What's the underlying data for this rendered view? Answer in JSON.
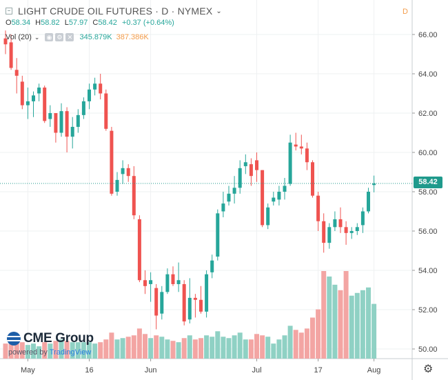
{
  "header": {
    "title": "LIGHT CRUDE OIL FUTURES · D · NYMEX",
    "flag": "D"
  },
  "ohlc": {
    "open_label": "O",
    "open": "58.34",
    "high_label": "H",
    "high": "58.82",
    "low_label": "L",
    "low": "57.97",
    "close_label": "C",
    "close": "58.42",
    "change": "+0.37 (+0.64%)"
  },
  "volume": {
    "label": "Vol (20)",
    "value": "345.879K",
    "ma": "387.386K"
  },
  "logo": {
    "name": "CME Group",
    "powered": "powered by ",
    "tv": "TradingView"
  },
  "last_price": "58.42",
  "colors": {
    "up": "#26a69a",
    "down": "#ef5350",
    "up_vol": "#8fd1c4",
    "down_vol": "#f3a5a3",
    "grid": "#eef0f2"
  },
  "chart_data": {
    "type": "candlestick",
    "y_ticks": [
      "50.00",
      "52.00",
      "54.00",
      "56.00",
      "58.00",
      "60.00",
      "62.00",
      "64.00",
      "66.00"
    ],
    "ylim": [
      49.6,
      67.0
    ],
    "x_ticks": [
      {
        "label": "May",
        "index": 4
      },
      {
        "label": "16",
        "index": 15
      },
      {
        "label": "Jun",
        "index": 26
      },
      {
        "label": "Jul",
        "index": 45
      },
      {
        "label": "17",
        "index": 56
      },
      {
        "label": "Aug",
        "index": 66
      }
    ],
    "candles": [
      {
        "date": "Apr 26",
        "o": 65.8,
        "h": 66.2,
        "l": 65.0,
        "c": 65.5,
        "v": 55
      },
      {
        "date": "Apr 29",
        "o": 65.6,
        "h": 66.0,
        "l": 64.2,
        "c": 64.3,
        "v": 60
      },
      {
        "date": "Apr 30",
        "o": 64.2,
        "h": 64.8,
        "l": 63.0,
        "c": 63.9,
        "v": 60
      },
      {
        "date": "May 1",
        "o": 63.6,
        "h": 63.9,
        "l": 62.2,
        "c": 62.4,
        "v": 60
      },
      {
        "date": "May 2",
        "o": 62.4,
        "h": 63.3,
        "l": 61.7,
        "c": 62.6,
        "v": 50
      },
      {
        "date": "May 3",
        "o": 62.6,
        "h": 63.1,
        "l": 61.8,
        "c": 62.9,
        "v": 55
      },
      {
        "date": "May 6",
        "o": 63.0,
        "h": 63.5,
        "l": 62.6,
        "c": 63.3,
        "v": 45
      },
      {
        "date": "May 7",
        "o": 63.3,
        "h": 63.4,
        "l": 61.5,
        "c": 61.6,
        "v": 60
      },
      {
        "date": "May 8",
        "o": 61.7,
        "h": 62.4,
        "l": 61.3,
        "c": 62.0,
        "v": 55
      },
      {
        "date": "May 9",
        "o": 62.0,
        "h": 62.0,
        "l": 60.5,
        "c": 61.0,
        "v": 65
      },
      {
        "date": "May 10",
        "o": 61.0,
        "h": 62.5,
        "l": 60.8,
        "c": 62.1,
        "v": 70
      },
      {
        "date": "May 13",
        "o": 62.1,
        "h": 62.3,
        "l": 60.0,
        "c": 60.8,
        "v": 65
      },
      {
        "date": "May 14",
        "o": 60.8,
        "h": 61.8,
        "l": 60.2,
        "c": 61.3,
        "v": 60
      },
      {
        "date": "May 15",
        "o": 61.3,
        "h": 62.2,
        "l": 61.0,
        "c": 61.9,
        "v": 60
      },
      {
        "date": "May 16",
        "o": 61.9,
        "h": 62.8,
        "l": 61.7,
        "c": 62.6,
        "v": 60
      },
      {
        "date": "May 17",
        "o": 62.6,
        "h": 63.5,
        "l": 62.2,
        "c": 63.2,
        "v": 60
      },
      {
        "date": "May 20",
        "o": 63.2,
        "h": 63.8,
        "l": 62.9,
        "c": 63.5,
        "v": 55
      },
      {
        "date": "May 21",
        "o": 63.5,
        "h": 64.0,
        "l": 62.7,
        "c": 63.0,
        "v": 60
      },
      {
        "date": "May 22",
        "o": 63.0,
        "h": 63.2,
        "l": 61.1,
        "c": 61.2,
        "v": 70
      },
      {
        "date": "May 23",
        "o": 61.1,
        "h": 61.3,
        "l": 57.8,
        "c": 57.9,
        "v": 95
      },
      {
        "date": "May 24",
        "o": 58.0,
        "h": 59.0,
        "l": 57.8,
        "c": 58.6,
        "v": 70
      },
      {
        "date": "May 28",
        "o": 58.9,
        "h": 59.6,
        "l": 58.4,
        "c": 59.2,
        "v": 75
      },
      {
        "date": "May 29",
        "o": 59.2,
        "h": 59.4,
        "l": 58.5,
        "c": 58.8,
        "v": 80
      },
      {
        "date": "May 30",
        "o": 58.8,
        "h": 59.3,
        "l": 56.6,
        "c": 56.8,
        "v": 85
      },
      {
        "date": "May 31",
        "o": 56.6,
        "h": 56.8,
        "l": 53.4,
        "c": 53.5,
        "v": 110
      },
      {
        "date": "Jun 3",
        "o": 53.5,
        "h": 54.0,
        "l": 52.8,
        "c": 53.2,
        "v": 90
      },
      {
        "date": "Jun 4",
        "o": 53.3,
        "h": 53.9,
        "l": 52.4,
        "c": 53.5,
        "v": 75
      },
      {
        "date": "Jun 5",
        "o": 53.1,
        "h": 53.3,
        "l": 51.0,
        "c": 51.7,
        "v": 85
      },
      {
        "date": "Jun 6",
        "o": 51.8,
        "h": 53.2,
        "l": 51.5,
        "c": 52.9,
        "v": 80
      },
      {
        "date": "Jun 7",
        "o": 52.9,
        "h": 54.1,
        "l": 52.8,
        "c": 53.8,
        "v": 70
      },
      {
        "date": "Jun 10",
        "o": 53.8,
        "h": 54.2,
        "l": 53.2,
        "c": 53.3,
        "v": 65
      },
      {
        "date": "Jun 11",
        "o": 53.3,
        "h": 54.4,
        "l": 52.9,
        "c": 53.5,
        "v": 60
      },
      {
        "date": "Jun 12",
        "o": 53.3,
        "h": 53.5,
        "l": 51.2,
        "c": 51.4,
        "v": 75
      },
      {
        "date": "Jun 13",
        "o": 51.5,
        "h": 53.6,
        "l": 51.3,
        "c": 52.6,
        "v": 85
      },
      {
        "date": "Jun 14",
        "o": 52.6,
        "h": 52.8,
        "l": 51.6,
        "c": 52.5,
        "v": 70
      },
      {
        "date": "Jun 17",
        "o": 52.5,
        "h": 53.2,
        "l": 51.8,
        "c": 51.9,
        "v": 75
      },
      {
        "date": "Jun 18",
        "o": 51.9,
        "h": 54.0,
        "l": 51.6,
        "c": 53.8,
        "v": 85
      },
      {
        "date": "Jun 19",
        "o": 53.9,
        "h": 54.8,
        "l": 53.6,
        "c": 54.5,
        "v": 80
      },
      {
        "date": "Jun 20",
        "o": 54.7,
        "h": 57.1,
        "l": 54.5,
        "c": 56.9,
        "v": 100
      },
      {
        "date": "Jun 21",
        "o": 57.0,
        "h": 58.0,
        "l": 56.7,
        "c": 57.4,
        "v": 80
      },
      {
        "date": "Jun 24",
        "o": 57.5,
        "h": 58.3,
        "l": 57.3,
        "c": 57.9,
        "v": 75
      },
      {
        "date": "Jun 25",
        "o": 57.9,
        "h": 58.8,
        "l": 57.4,
        "c": 58.2,
        "v": 85
      },
      {
        "date": "Jun 26",
        "o": 58.2,
        "h": 59.6,
        "l": 57.9,
        "c": 59.2,
        "v": 95
      },
      {
        "date": "Jun 27",
        "o": 59.3,
        "h": 59.9,
        "l": 58.9,
        "c": 59.5,
        "v": 70
      },
      {
        "date": "Jun 28",
        "o": 59.4,
        "h": 59.7,
        "l": 58.3,
        "c": 58.8,
        "v": 70
      },
      {
        "date": "Jul 1",
        "o": 59.6,
        "h": 60.0,
        "l": 58.5,
        "c": 59.1,
        "v": 90
      },
      {
        "date": "Jul 2",
        "o": 59.1,
        "h": 59.1,
        "l": 56.2,
        "c": 56.3,
        "v": 85
      },
      {
        "date": "Jul 3",
        "o": 56.3,
        "h": 57.4,
        "l": 56.1,
        "c": 57.2,
        "v": 80
      },
      {
        "date": "Jul 5",
        "o": 57.5,
        "h": 58.0,
        "l": 57.3,
        "c": 57.7,
        "v": 55
      },
      {
        "date": "Jul 8",
        "o": 57.6,
        "h": 58.3,
        "l": 57.3,
        "c": 58.0,
        "v": 70
      },
      {
        "date": "Jul 9",
        "o": 58.0,
        "h": 58.7,
        "l": 57.6,
        "c": 58.3,
        "v": 85
      },
      {
        "date": "Jul 10",
        "o": 58.4,
        "h": 60.9,
        "l": 58.3,
        "c": 60.5,
        "v": 120
      },
      {
        "date": "Jul 11",
        "o": 60.4,
        "h": 61.0,
        "l": 60.1,
        "c": 60.3,
        "v": 105
      },
      {
        "date": "Jul 12",
        "o": 60.3,
        "h": 60.9,
        "l": 59.9,
        "c": 60.2,
        "v": 95
      },
      {
        "date": "Jul 15",
        "o": 60.2,
        "h": 60.5,
        "l": 59.1,
        "c": 59.5,
        "v": 110
      },
      {
        "date": "Jul 16",
        "o": 59.5,
        "h": 59.6,
        "l": 57.7,
        "c": 57.8,
        "v": 150
      },
      {
        "date": "Jul 17",
        "o": 57.8,
        "h": 58.0,
        "l": 56.0,
        "c": 56.5,
        "v": 180
      },
      {
        "date": "Jul 18",
        "o": 56.5,
        "h": 56.9,
        "l": 54.9,
        "c": 55.4,
        "v": 320
      },
      {
        "date": "Jul 19",
        "o": 55.4,
        "h": 56.4,
        "l": 55.1,
        "c": 56.2,
        "v": 300
      },
      {
        "date": "Jul 22",
        "o": 56.2,
        "h": 57.0,
        "l": 56.0,
        "c": 56.6,
        "v": 270
      },
      {
        "date": "Jul 23",
        "o": 56.6,
        "h": 57.2,
        "l": 55.9,
        "c": 56.2,
        "v": 250
      },
      {
        "date": "Jul 24",
        "o": 56.2,
        "h": 56.5,
        "l": 55.3,
        "c": 55.9,
        "v": 320
      },
      {
        "date": "Jul 25",
        "o": 55.9,
        "h": 56.2,
        "l": 55.6,
        "c": 56.0,
        "v": 230
      },
      {
        "date": "Jul 26",
        "o": 56.0,
        "h": 56.4,
        "l": 55.8,
        "c": 56.2,
        "v": 240
      },
      {
        "date": "Jul 29",
        "o": 56.3,
        "h": 57.2,
        "l": 55.9,
        "c": 57.0,
        "v": 250
      },
      {
        "date": "Jul 30",
        "o": 57.0,
        "h": 58.2,
        "l": 56.9,
        "c": 58.0,
        "v": 260
      },
      {
        "date": "Jul 31",
        "o": 58.34,
        "h": 58.82,
        "l": 57.97,
        "c": 58.42,
        "v": 200
      }
    ]
  }
}
